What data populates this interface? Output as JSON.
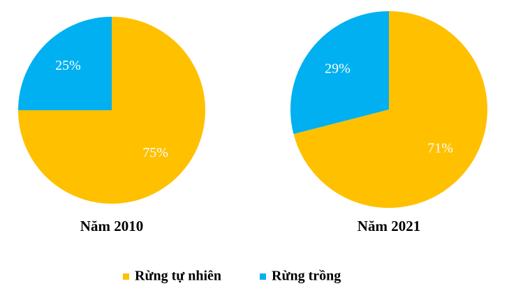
{
  "chart_data": [
    {
      "type": "pie",
      "title": "Năm 2010",
      "categories": [
        "Rừng tự nhiên",
        "Rừng trồng"
      ],
      "values": [
        75,
        25
      ],
      "value_labels": [
        "75%",
        "25%"
      ],
      "colors": [
        "#FFC000",
        "#00B0F0"
      ]
    },
    {
      "type": "pie",
      "title": "Năm 2021",
      "categories": [
        "Rừng tự nhiên",
        "Rừng trồng"
      ],
      "values": [
        71,
        29
      ],
      "value_labels": [
        "71%",
        "29%"
      ],
      "colors": [
        "#FFC000",
        "#00B0F0"
      ]
    }
  ]
}
